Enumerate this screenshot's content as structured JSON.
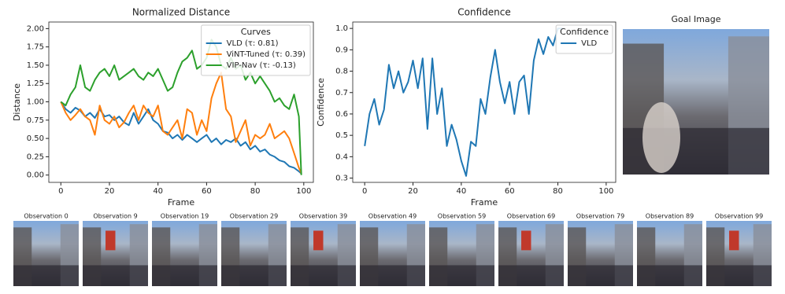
{
  "chart_data": [
    {
      "type": "line",
      "title": "Normalized Distance",
      "x_label": "Frame",
      "y_label": "Distance",
      "x": [
        0,
        2,
        4,
        6,
        8,
        10,
        12,
        14,
        16,
        18,
        20,
        22,
        24,
        26,
        28,
        30,
        32,
        34,
        36,
        38,
        40,
        42,
        44,
        46,
        48,
        50,
        52,
        54,
        56,
        58,
        60,
        62,
        64,
        66,
        68,
        70,
        72,
        74,
        76,
        78,
        80,
        82,
        84,
        86,
        88,
        90,
        92,
        94,
        96,
        98,
        99
      ],
      "series": [
        {
          "name": "VLD (τ: 0.81)",
          "color": "#1f77b4",
          "values": [
            1.0,
            0.9,
            0.85,
            0.92,
            0.88,
            0.8,
            0.85,
            0.78,
            0.9,
            0.8,
            0.82,
            0.75,
            0.8,
            0.72,
            0.68,
            0.85,
            0.7,
            0.8,
            0.9,
            0.75,
            0.7,
            0.6,
            0.58,
            0.5,
            0.55,
            0.48,
            0.55,
            0.5,
            0.45,
            0.5,
            0.55,
            0.45,
            0.5,
            0.42,
            0.48,
            0.45,
            0.5,
            0.4,
            0.45,
            0.35,
            0.4,
            0.32,
            0.35,
            0.28,
            0.25,
            0.2,
            0.18,
            0.12,
            0.1,
            0.05,
            0.02
          ]
        },
        {
          "name": "ViNT-Tuned (τ: 0.39)",
          "color": "#ff7f0e",
          "values": [
            1.0,
            0.85,
            0.75,
            0.82,
            0.9,
            0.8,
            0.75,
            0.55,
            0.95,
            0.75,
            0.7,
            0.8,
            0.65,
            0.72,
            0.85,
            0.95,
            0.75,
            0.95,
            0.85,
            0.8,
            0.95,
            0.6,
            0.55,
            0.65,
            0.75,
            0.5,
            0.9,
            0.85,
            0.55,
            0.75,
            0.6,
            1.05,
            1.25,
            1.4,
            0.9,
            0.8,
            0.45,
            0.6,
            0.75,
            0.4,
            0.55,
            0.5,
            0.55,
            0.7,
            0.5,
            0.55,
            0.6,
            0.5,
            0.3,
            0.1,
            0.02
          ]
        },
        {
          "name": "VIP-Nav (τ: -0.13)",
          "color": "#2ca02c",
          "values": [
            1.0,
            0.95,
            1.1,
            1.2,
            1.5,
            1.2,
            1.15,
            1.3,
            1.4,
            1.45,
            1.35,
            1.5,
            1.3,
            1.35,
            1.4,
            1.45,
            1.35,
            1.3,
            1.4,
            1.35,
            1.45,
            1.3,
            1.15,
            1.2,
            1.4,
            1.55,
            1.6,
            1.7,
            1.45,
            1.5,
            1.6,
            1.85,
            1.75,
            1.5,
            1.45,
            1.6,
            1.45,
            1.5,
            1.3,
            1.4,
            1.25,
            1.35,
            1.25,
            1.15,
            1.0,
            1.05,
            0.95,
            0.9,
            1.1,
            0.8,
            0.0
          ]
        }
      ],
      "xlim": [
        -4.95,
        103.95
      ],
      "xticks": [
        0,
        20,
        40,
        60,
        80,
        100
      ],
      "ylim": [
        -0.1,
        2.09
      ],
      "yticks": [
        {
          "value": 0,
          "label": "0.00"
        },
        {
          "value": 0.25,
          "label": "0.25"
        },
        {
          "value": 0.5,
          "label": "0.50"
        },
        {
          "value": 0.75,
          "label": "0.75"
        },
        {
          "value": 1,
          "label": "1.00"
        },
        {
          "value": 1.25,
          "label": "1.25"
        },
        {
          "value": 1.5,
          "label": "1.50"
        },
        {
          "value": 1.75,
          "label": "1.75"
        },
        {
          "value": 2,
          "label": "2.00"
        }
      ],
      "legend_title": "Curves",
      "legend": "upper right",
      "grid": false
    },
    {
      "type": "line",
      "title": "Confidence",
      "x_label": "Frame",
      "y_label": "Confidence",
      "x": [
        0,
        2,
        4,
        6,
        8,
        10,
        12,
        14,
        16,
        18,
        20,
        22,
        24,
        26,
        28,
        30,
        32,
        34,
        36,
        38,
        40,
        42,
        44,
        46,
        48,
        50,
        52,
        54,
        56,
        58,
        60,
        62,
        64,
        66,
        68,
        70,
        72,
        74,
        76,
        78,
        80,
        82
      ],
      "series": [
        {
          "name": "VLD",
          "color": "#1f77b4",
          "values": [
            0.45,
            0.6,
            0.67,
            0.55,
            0.62,
            0.83,
            0.72,
            0.8,
            0.7,
            0.75,
            0.85,
            0.72,
            0.86,
            0.53,
            0.86,
            0.6,
            0.72,
            0.45,
            0.55,
            0.48,
            0.38,
            0.31,
            0.47,
            0.45,
            0.67,
            0.6,
            0.77,
            0.9,
            0.75,
            0.65,
            0.75,
            0.6,
            0.75,
            0.78,
            0.6,
            0.85,
            0.95,
            0.88,
            0.96,
            0.92,
            1.0,
            1.0
          ]
        }
      ],
      "xlim": [
        -4.95,
        103.95
      ],
      "xticks": [
        0,
        20,
        40,
        60,
        80,
        100
      ],
      "ylim": [
        0.28,
        1.03
      ],
      "yticks": [
        0.3,
        0.4,
        0.5,
        0.6,
        0.7,
        0.8,
        0.9,
        {
          "value": 1,
          "label": "1.0"
        }
      ],
      "legend_title": "Confidence",
      "legend": "upper right",
      "grid": false
    }
  ],
  "goal_image": {
    "title": "Goal Image"
  },
  "observations": [
    "Observation 0",
    "Observation 9",
    "Observation 19",
    "Observation 29",
    "Observation 39",
    "Observation 49",
    "Observation 59",
    "Observation 69",
    "Observation 79",
    "Observation 89",
    "Observation 99"
  ]
}
